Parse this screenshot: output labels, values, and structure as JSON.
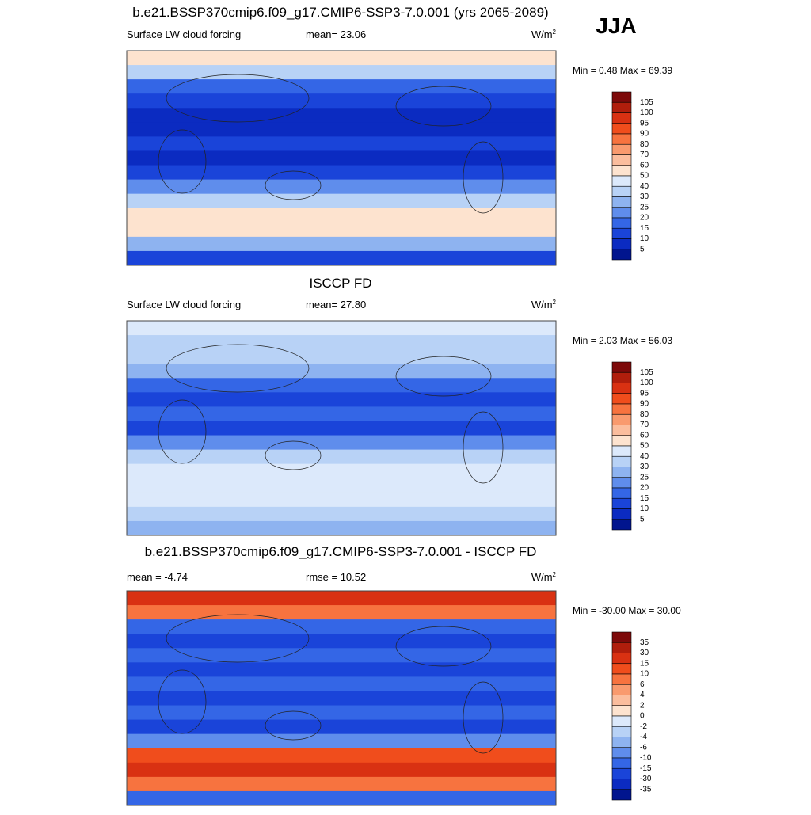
{
  "season": "JJA",
  "panels": [
    {
      "title": "b.e21.BSSP370cmip6.f09_g17.CMIP6-SSP3-7.0.001 (yrs 2065-2089)",
      "left": "Surface LW cloud forcing",
      "center": "mean=  23.06",
      "units": {
        "base": "W/m",
        "sup": "2"
      },
      "minmax": "Min =   0.48 Max =  69.39",
      "colorbar": {
        "labels": [
          "105",
          "100",
          "95",
          "90",
          "80",
          "70",
          "60",
          "50",
          "40",
          "30",
          "25",
          "20",
          "15",
          "10",
          "5"
        ],
        "colors": [
          "#7d0a0a",
          "#b01e0c",
          "#d93112",
          "#f04d1c",
          "#f7733f",
          "#f99a6e",
          "#fbbd9d",
          "#fde3cf",
          "#dce9fb",
          "#b8d2f6",
          "#8eb3f0",
          "#5f8dec",
          "#3466e6",
          "#1a44d9",
          "#0b2bc1",
          "#01158e"
        ]
      }
    },
    {
      "title": "ISCCP FD",
      "left": "Surface LW cloud forcing",
      "center": "mean=  27.80",
      "units": {
        "base": "W/m",
        "sup": "2"
      },
      "minmax": "Min =   2.03 Max =  56.03",
      "colorbar": {
        "labels": [
          "105",
          "100",
          "95",
          "90",
          "80",
          "70",
          "60",
          "50",
          "40",
          "30",
          "25",
          "20",
          "15",
          "10",
          "5"
        ],
        "colors": [
          "#7d0a0a",
          "#b01e0c",
          "#d93112",
          "#f04d1c",
          "#f7733f",
          "#f99a6e",
          "#fbbd9d",
          "#fde3cf",
          "#dce9fb",
          "#b8d2f6",
          "#8eb3f0",
          "#5f8dec",
          "#3466e6",
          "#1a44d9",
          "#0b2bc1",
          "#01158e"
        ]
      }
    },
    {
      "title": "b.e21.BSSP370cmip6.f09_g17.CMIP6-SSP3-7.0.001 - ISCCP FD",
      "left": "mean =  -4.74",
      "center": "rmse =  10.52",
      "units": {
        "base": "W/m",
        "sup": "2"
      },
      "minmax": "Min = -30.00 Max =  30.00",
      "colorbar": {
        "labels": [
          "35",
          "30",
          "15",
          "10",
          "6",
          "4",
          "2",
          "0",
          "-2",
          "-4",
          "-6",
          "-10",
          "-15",
          "-30",
          "-35"
        ],
        "colors": [
          "#7d0a0a",
          "#b01e0c",
          "#d93112",
          "#f04d1c",
          "#f7733f",
          "#f99a6e",
          "#fbbd9d",
          "#fde3cf",
          "#dce9fb",
          "#b8d2f6",
          "#8eb3f0",
          "#5f8dec",
          "#3466e6",
          "#1a44d9",
          "#0b2bc1",
          "#01158e"
        ]
      }
    }
  ]
}
